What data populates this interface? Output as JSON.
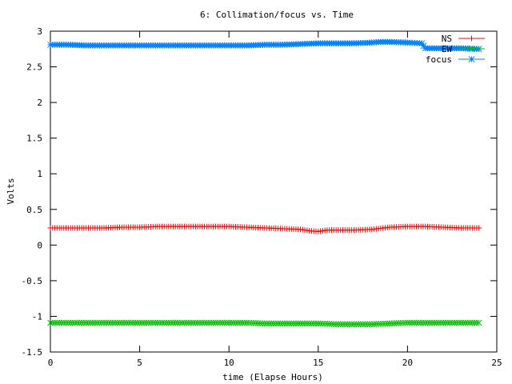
{
  "chart_data": {
    "type": "line",
    "title": "6: Collimation/focus vs. Time",
    "xlabel": "time (Elapse Hours)",
    "ylabel": "Volts",
    "xlim": [
      0,
      25
    ],
    "ylim": [
      -1.5,
      3
    ],
    "x_ticks": [
      0,
      5,
      10,
      15,
      20,
      25
    ],
    "x_tick_labels": [
      "0",
      "5",
      "10",
      "15",
      "20",
      "25"
    ],
    "y_ticks": [
      -1.5,
      -1,
      -0.5,
      0,
      0.5,
      1,
      1.5,
      2,
      2.5,
      3
    ],
    "y_tick_labels": [
      "-1.5",
      "-1",
      "-0.5",
      "0",
      "0.5",
      "1",
      "1.5",
      "2",
      "2.5",
      "3"
    ],
    "grid": false,
    "legend_position": "top-right",
    "series": [
      {
        "name": "NS",
        "color": "#ff0000",
        "marker": "plus",
        "x": [
          0,
          1,
          2,
          3,
          4,
          5,
          6,
          7,
          8,
          9,
          10,
          11,
          12,
          13,
          14,
          14.5,
          15,
          15.5,
          16,
          17,
          18,
          19,
          20,
          21,
          22,
          23,
          24
        ],
        "y": [
          0.24,
          0.24,
          0.24,
          0.24,
          0.25,
          0.25,
          0.26,
          0.26,
          0.26,
          0.26,
          0.26,
          0.25,
          0.24,
          0.23,
          0.22,
          0.2,
          0.19,
          0.21,
          0.21,
          0.21,
          0.22,
          0.25,
          0.26,
          0.26,
          0.25,
          0.24,
          0.24
        ]
      },
      {
        "name": "EW",
        "color": "#00c000",
        "marker": "cross",
        "x": [
          0,
          1,
          2,
          3,
          4,
          5,
          6,
          7,
          8,
          9,
          10,
          11,
          12,
          13,
          14,
          15,
          16,
          17,
          18,
          19,
          20,
          21,
          22,
          23,
          24
        ],
        "y": [
          -1.09,
          -1.09,
          -1.09,
          -1.09,
          -1.09,
          -1.09,
          -1.09,
          -1.09,
          -1.09,
          -1.09,
          -1.09,
          -1.09,
          -1.1,
          -1.1,
          -1.1,
          -1.1,
          -1.11,
          -1.11,
          -1.11,
          -1.1,
          -1.09,
          -1.09,
          -1.09,
          -1.09,
          -1.09
        ]
      },
      {
        "name": "focus",
        "color": "#0080ff",
        "marker": "star",
        "x": [
          0,
          1,
          2,
          3,
          4,
          5,
          6,
          7,
          8,
          9,
          10,
          11,
          12,
          13,
          14,
          15,
          16,
          17,
          18,
          18.5,
          19,
          20,
          20.8,
          21,
          22,
          23,
          24
        ],
        "y": [
          2.81,
          2.81,
          2.8,
          2.8,
          2.8,
          2.8,
          2.8,
          2.8,
          2.8,
          2.8,
          2.8,
          2.8,
          2.81,
          2.81,
          2.82,
          2.83,
          2.83,
          2.83,
          2.84,
          2.85,
          2.85,
          2.84,
          2.83,
          2.76,
          2.76,
          2.76,
          2.75
        ]
      }
    ]
  }
}
